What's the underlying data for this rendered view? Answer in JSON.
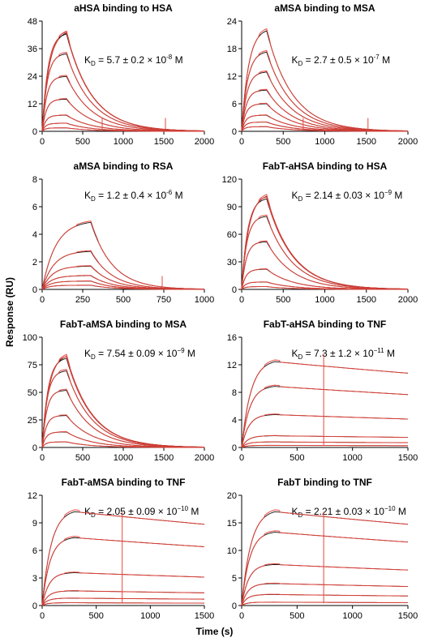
{
  "figure": {
    "ylabel": "Response (RU)",
    "xlabel": "Time (s)"
  },
  "chart_data": [
    {
      "type": "line",
      "title": "aHSA binding to HSA",
      "kd": {
        "prefix": "K",
        "sub": "D",
        "text": " = 5.7 ± 0.2 × 10",
        "exp": "-8",
        "unit": " M"
      },
      "xlim": [
        0,
        2000
      ],
      "ylim": [
        0,
        48
      ],
      "xticks": [
        0,
        500,
        1000,
        1500,
        2000
      ],
      "yticks": [
        0,
        12,
        24,
        36,
        48
      ],
      "xlabel": "",
      "ylabel": "",
      "assoc_end": 300,
      "plateaus": [
        44,
        43,
        34,
        24,
        14,
        7,
        3.5,
        1.5
      ],
      "spikes": [
        740,
        1520
      ],
      "series": []
    },
    {
      "type": "line",
      "title": "aMSA binding to MSA",
      "kd": {
        "prefix": "K",
        "sub": "D",
        "text": " = 2.7 ± 0.5 × 10",
        "exp": "-7",
        "unit": " M"
      },
      "xlim": [
        0,
        2000
      ],
      "ylim": [
        0,
        24
      ],
      "xticks": [
        0,
        500,
        1000,
        1500,
        2000
      ],
      "yticks": [
        0,
        6,
        12,
        18,
        24
      ],
      "xlabel": "",
      "ylabel": "",
      "assoc_end": 300,
      "plateaus": [
        22.5,
        17.5,
        13,
        9,
        6,
        3.5,
        2,
        1
      ],
      "spikes": [
        740,
        1520
      ],
      "series": []
    },
    {
      "type": "line",
      "title": "aMSA binding to RSA",
      "kd": {
        "prefix": "K",
        "sub": "D",
        "text": " = 1.2 ± 0.4 × 10",
        "exp": "-6",
        "unit": " M"
      },
      "xlim": [
        0,
        1000
      ],
      "ylim": [
        0,
        8
      ],
      "xticks": [
        0,
        250,
        500,
        750,
        1000
      ],
      "yticks": [
        0,
        2,
        4,
        6,
        8
      ],
      "xlabel": "",
      "ylabel": "",
      "assoc_end": 300,
      "plateaus": [
        5.0,
        2.8,
        1.7,
        1.0,
        0.6,
        0.3
      ],
      "spikes": [
        740
      ],
      "series": []
    },
    {
      "type": "line",
      "title": "FabT-aHSA binding to HSA",
      "kd": {
        "prefix": "K",
        "sub": "D",
        "text": " = 2.14 ± 0.03 × 10",
        "exp": "−9",
        "unit": " M"
      },
      "xlim": [
        0,
        2000
      ],
      "ylim": [
        0,
        120
      ],
      "xticks": [
        0,
        500,
        1000,
        1500,
        2000
      ],
      "yticks": [
        0,
        30,
        60,
        90,
        120
      ],
      "xlabel": "",
      "ylabel": "",
      "assoc_end": 300,
      "plateaus": [
        104,
        100,
        80,
        52,
        22,
        8,
        3
      ],
      "spikes": [],
      "series": []
    },
    {
      "type": "line",
      "title": "FabT-aMSA binding to MSA",
      "kd": {
        "prefix": "K",
        "sub": "D",
        "text": " = 7.54 ± 0.09 × 10",
        "exp": "−9",
        "unit": " M"
      },
      "xlim": [
        0,
        2000
      ],
      "ylim": [
        0,
        100
      ],
      "xticks": [
        0,
        500,
        1000,
        1500,
        2000
      ],
      "yticks": [
        0,
        25,
        50,
        75,
        100
      ],
      "xlabel": "",
      "ylabel": "",
      "assoc_end": 300,
      "plateaus": [
        85,
        82,
        70,
        52,
        29,
        14,
        5
      ],
      "spikes": [],
      "series": []
    },
    {
      "type": "line",
      "title": "FabT-aHSA binding to TNF",
      "kd": {
        "prefix": "K",
        "sub": "D",
        "text": " = 7.3 ± 1.2 × 10",
        "exp": "−11",
        "unit": " M"
      },
      "xlim": [
        0,
        1500
      ],
      "ylim": [
        0,
        16
      ],
      "xticks": [
        0,
        500,
        1000,
        1500
      ],
      "yticks": [
        0,
        4,
        8,
        12,
        16
      ],
      "xlabel": "",
      "ylabel": "",
      "assoc_end": 300,
      "plateaus": [
        12.8,
        9.0,
        4.8,
        1.7,
        0.8,
        0.3
      ],
      "slow_decay": true,
      "spikes": [
        740
      ],
      "series": []
    },
    {
      "type": "line",
      "title": "FabT-aMSA binding to TNF",
      "kd": {
        "prefix": "K",
        "sub": "D",
        "text": " = 2.05 ± 0.09 × 10",
        "exp": "−10",
        "unit": " M"
      },
      "xlim": [
        0,
        1500
      ],
      "ylim": [
        0,
        12
      ],
      "xticks": [
        0,
        500,
        1000,
        1500
      ],
      "yticks": [
        0,
        3,
        6,
        9,
        12
      ],
      "xlabel": "",
      "ylabel": "",
      "assoc_end": 300,
      "plateaus": [
        10.5,
        7.5,
        3.6,
        1.6,
        0.8,
        0.3
      ],
      "slow_decay": true,
      "spikes": [
        740
      ],
      "series": []
    },
    {
      "type": "line",
      "title": "FabT binding to TNF",
      "kd": {
        "prefix": "K",
        "sub": "D",
        "text": " = 2.21 ± 0.03 × 10",
        "exp": "−10",
        "unit": " M"
      },
      "xlim": [
        0,
        1500
      ],
      "ylim": [
        0,
        20
      ],
      "xticks": [
        0,
        500,
        1000,
        1500
      ],
      "yticks": [
        0,
        5,
        10,
        15,
        20
      ],
      "xlabel": "",
      "ylabel": "",
      "assoc_end": 300,
      "plateaus": [
        17.5,
        13.5,
        7.5,
        4.0,
        2.0,
        0.6
      ],
      "slow_decay": true,
      "spikes": [
        740
      ],
      "series": []
    }
  ],
  "colors": {
    "data_trace": "#e8453c",
    "fit_trace": "#111111",
    "axis": "#000000"
  }
}
